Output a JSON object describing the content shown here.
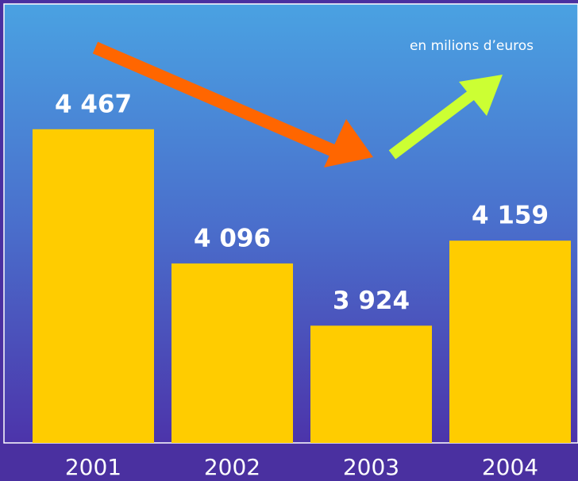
{
  "chart_data": {
    "type": "bar",
    "categories": [
      "2001",
      "2002",
      "2003",
      "2004"
    ],
    "values": [
      4467,
      4096,
      3924,
      4159
    ],
    "value_labels": [
      "4 467",
      "4 096",
      "3 924",
      "4 159"
    ],
    "color": "#ffcc00",
    "ylim": [
      3600,
      4800
    ],
    "annotation": "en milions d’euros"
  }
}
